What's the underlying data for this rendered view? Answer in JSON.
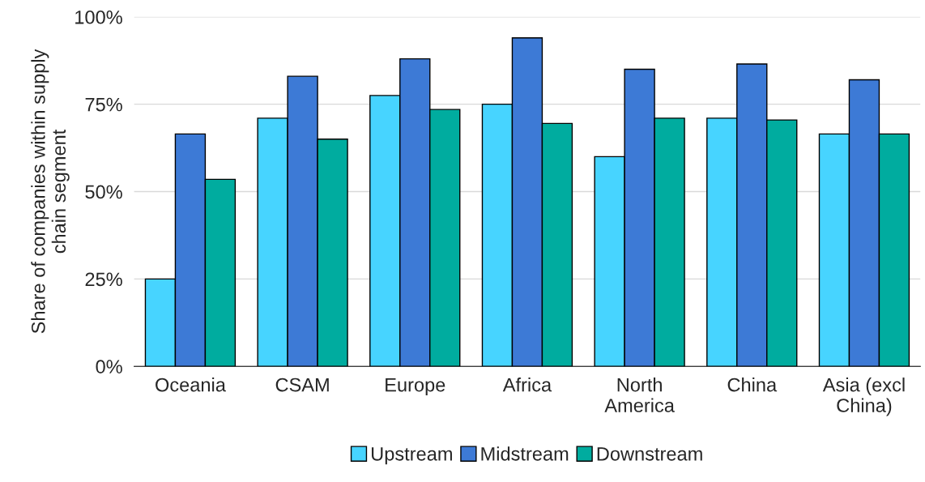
{
  "chart_data": {
    "type": "bar",
    "ylabel": "Share of companies within supply\nchain segment",
    "categories": [
      "Oceania",
      "CSAM",
      "Europe",
      "Africa",
      "North\nAmerica",
      "China",
      "Asia (excl\nChina)"
    ],
    "series": [
      {
        "name": "Upstream",
        "color": "#47d4ff",
        "values": [
          25,
          71,
          77.5,
          75,
          60,
          71,
          66.5
        ]
      },
      {
        "name": "Midstream",
        "color": "#3d7ad6",
        "values": [
          66.5,
          83,
          88,
          94,
          85,
          86.5,
          82
        ]
      },
      {
        "name": "Downstream",
        "color": "#00ac9f",
        "values": [
          53.5,
          65,
          73.5,
          69.5,
          71,
          70.5,
          66.5
        ]
      }
    ],
    "ylim": [
      0,
      100
    ],
    "yticks": [
      {
        "value": 0,
        "label": "0%"
      },
      {
        "value": 25,
        "label": "25%"
      },
      {
        "value": 50,
        "label": "50%"
      },
      {
        "value": 75,
        "label": "75%"
      },
      {
        "value": 100,
        "label": "100%"
      }
    ],
    "grid": "y",
    "legend": "bottom"
  }
}
